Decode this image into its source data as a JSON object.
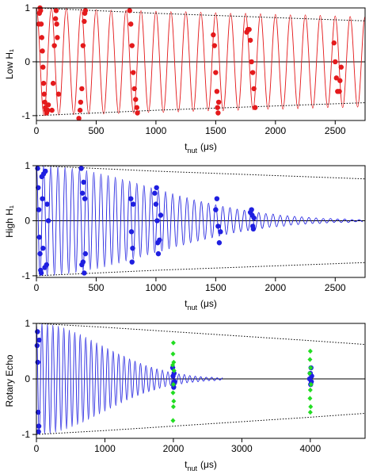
{
  "chart_data": [
    {
      "type": "line",
      "ylabel": "Low H₁",
      "xlabel": {
        "text": "t",
        "subscript": "nut",
        "unit": "(μs)"
      },
      "xlim": [
        0,
        2750
      ],
      "ylim": [
        -1.09,
        1
      ],
      "xticks": [
        0,
        500,
        1000,
        1500,
        2000,
        2500
      ],
      "yticks": [
        -1,
        0,
        1
      ],
      "zero_line": true,
      "series": [
        {
          "color": "#e41a1c",
          "line_style": "smooth",
          "x": [
            0,
            62.5,
            125,
            187.5,
            250,
            312.5,
            375,
            437.5,
            500,
            562.5,
            625,
            687.5,
            750,
            812.5,
            875,
            937.5,
            1000,
            1062.5,
            1125,
            1187.5,
            1250,
            1312.5,
            1375,
            1437.5,
            1500,
            1562.5,
            1625,
            1687.5,
            1750,
            1812.5,
            1875,
            1937.5,
            2000,
            2062.5,
            2125,
            2187.5,
            2250,
            2312.5,
            2375,
            2437.5,
            2500,
            2562.5,
            2625,
            2687.5,
            2750
          ],
          "values": [
            1,
            -1,
            0.99,
            -0.99,
            0.99,
            -0.98,
            0.98,
            -0.97,
            0.97,
            -0.97,
            0.96,
            -0.96,
            0.96,
            -0.95,
            0.95,
            -0.94,
            0.94,
            -0.94,
            0.93,
            -0.93,
            0.93,
            -0.92,
            0.92,
            -0.91,
            0.91,
            -0.91,
            0.9,
            -0.9,
            0.9,
            -0.89,
            0.89,
            -0.88,
            0.88,
            -0.88,
            0.87,
            -0.87,
            0.87,
            -0.86,
            0.86,
            -0.85,
            0.85,
            -0.85,
            0.84,
            -0.84,
            0.84
          ]
        },
        {
          "color": "#000000",
          "line_style": "dotted",
          "x": [
            0,
            500,
            1000,
            1500,
            2000,
            2500,
            2750
          ],
          "values": [
            1,
            0.95,
            0.9,
            0.86,
            0.82,
            0.78,
            0.76
          ]
        },
        {
          "color": "#000000",
          "line_style": "dotted",
          "x": [
            0,
            500,
            1000,
            1500,
            2000,
            2500,
            2750
          ],
          "values": [
            -1,
            -0.95,
            -0.9,
            -0.86,
            -0.82,
            -0.78,
            -0.76
          ]
        }
      ],
      "points": [
        {
          "color": "#e41a1c",
          "marker": "circle",
          "x": [
            20,
            25,
            30,
            35,
            40,
            45,
            50,
            55,
            60,
            65,
            70,
            75,
            80,
            85,
            95,
            100,
            130,
            140,
            150,
            160,
            165,
            170,
            175,
            185,
            355,
            365,
            370,
            380,
            390,
            400,
            405,
            410,
            780,
            790,
            800,
            810,
            820,
            830,
            840,
            845,
            1480,
            1490,
            1500,
            1510,
            1515,
            1520,
            1525,
            1760,
            1770,
            1780,
            1790,
            1800,
            1810,
            1820,
            1830,
            2490,
            2500,
            2510,
            2520,
            2535,
            2540,
            2550
          ],
          "values": [
            0.7,
            0.9,
            1.0,
            0.95,
            0.7,
            0.45,
            0.2,
            -0.1,
            -0.4,
            -0.6,
            -0.75,
            -0.85,
            -0.9,
            -0.95,
            -0.9,
            -0.8,
            -0.9,
            -0.4,
            0.3,
            0.8,
            0.95,
            0.7,
            0.45,
            -0.6,
            -1.05,
            -0.9,
            -0.75,
            -0.5,
            0.3,
            0.75,
            0.9,
            0.95,
            0.95,
            0.7,
            0.3,
            -0.2,
            -0.5,
            -0.7,
            -0.85,
            -0.95,
            0.5,
            0.3,
            -0.2,
            -0.55,
            -0.85,
            -0.95,
            -0.75,
            0.55,
            0.6,
            0.6,
            0.4,
            0.0,
            -0.2,
            -0.5,
            -0.85,
            0.35,
            0.0,
            -0.3,
            -0.55,
            -0.55,
            -0.35,
            -0.1
          ]
        }
      ]
    },
    {
      "type": "line",
      "ylabel": "High H₁",
      "xlabel": {
        "text": "t",
        "subscript": "nut",
        "unit": "(μs)"
      },
      "xlim": [
        0,
        2750
      ],
      "ylim": [
        -1.03,
        1
      ],
      "xticks": [
        0,
        500,
        1000,
        1500,
        2000,
        2500
      ],
      "yticks": [
        -1,
        0,
        1
      ],
      "zero_line": true,
      "series": [
        {
          "color": "#1f1fe0",
          "line_style": "smooth",
          "x": [
            0,
            30,
            60,
            90,
            120,
            150,
            180,
            210,
            240,
            270,
            300,
            330,
            360,
            390,
            420,
            450,
            480,
            510,
            540,
            570,
            600,
            630,
            660,
            690,
            720,
            750,
            780,
            810,
            840,
            870,
            900,
            930,
            960,
            990,
            1020,
            1050,
            1080,
            1110,
            1140,
            1170,
            1200,
            1230,
            1260,
            1290,
            1320,
            1350,
            1380,
            1410,
            1440,
            1470,
            1500,
            1530,
            1560,
            1590,
            1620,
            1650,
            1680,
            1710,
            1740,
            1770,
            1800,
            1830,
            1860,
            1890,
            1920,
            1950,
            1980,
            2010,
            2040,
            2070,
            2100,
            2130,
            2160,
            2190,
            2220,
            2250,
            2280,
            2310,
            2340,
            2370,
            2400,
            2430,
            2460,
            2490,
            2520,
            2550,
            2580,
            2610,
            2640,
            2670,
            2700,
            2730
          ],
          "values": [
            1,
            -1,
            1,
            -1,
            0.99,
            -0.99,
            0.98,
            -0.98,
            0.97,
            -0.96,
            0.95,
            -0.94,
            0.93,
            -0.92,
            0.91,
            -0.89,
            0.88,
            -0.87,
            0.85,
            -0.84,
            0.82,
            -0.8,
            0.79,
            -0.77,
            0.75,
            -0.73,
            0.72,
            -0.7,
            0.68,
            -0.66,
            0.64,
            -0.62,
            0.6,
            -0.58,
            0.56,
            -0.55,
            0.53,
            -0.51,
            0.49,
            -0.47,
            0.45,
            -0.44,
            0.42,
            -0.4,
            0.38,
            -0.37,
            0.35,
            -0.34,
            0.32,
            -0.31,
            0.29,
            -0.28,
            0.26,
            -0.25,
            0.24,
            -0.22,
            0.21,
            -0.2,
            0.19,
            -0.18,
            0.17,
            -0.16,
            0.15,
            -0.14,
            0.13,
            -0.12,
            0.12,
            -0.11,
            0.1,
            -0.1,
            0.09,
            -0.08,
            0.08,
            -0.07,
            0.07,
            -0.06,
            0.06,
            -0.05,
            0.05,
            -0.05,
            0.04,
            -0.04,
            0.04,
            -0.03,
            0.03,
            -0.03,
            0.03,
            -0.03,
            0.02,
            -0.02,
            0.02,
            -0.02
          ]
        },
        {
          "color": "#000000",
          "line_style": "dotted",
          "x": [
            0,
            500,
            1000,
            1500,
            2000,
            2500,
            2750
          ],
          "values": [
            1,
            0.95,
            0.9,
            0.86,
            0.82,
            0.78,
            0.76
          ]
        },
        {
          "color": "#000000",
          "line_style": "dotted",
          "x": [
            0,
            500,
            1000,
            1500,
            2000,
            2500,
            2750
          ],
          "values": [
            -1,
            -0.95,
            -0.9,
            -0.86,
            -0.82,
            -0.78,
            -0.76
          ]
        }
      ],
      "points": [
        {
          "color": "#1f1fe0",
          "marker": "circle",
          "x": [
            10,
            15,
            20,
            25,
            30,
            35,
            40,
            45,
            50,
            55,
            60,
            70,
            75,
            85,
            90,
            100,
            375,
            380,
            385,
            390,
            395,
            400,
            405,
            410,
            790,
            795,
            800,
            805,
            810,
            990,
            1000,
            1005,
            1010,
            1015,
            1020,
            1030,
            1040,
            1500,
            1510,
            1520,
            1530,
            1540,
            1790,
            1800,
            1805,
            1810,
            1815,
            1820
          ],
          "values": [
            0.95,
            0.6,
            0.2,
            -0.3,
            -0.6,
            -0.9,
            -0.95,
            0.8,
            0.4,
            -0.5,
            0.85,
            -0.85,
            0.9,
            -0.8,
            0.3,
            0.0,
            0.95,
            -0.8,
            0.5,
            -0.75,
            0.7,
            -0.95,
            0.4,
            -0.6,
            0.4,
            -0.2,
            -0.75,
            -0.5,
            0.3,
            0.5,
            0.3,
            0.6,
            0.0,
            -0.4,
            -0.6,
            -0.35,
            0.1,
            0.2,
            0.4,
            -0.1,
            -0.4,
            -0.2,
            0.15,
            0.2,
            0.1,
            -0.1,
            -0.15,
            0.05
          ]
        }
      ]
    },
    {
      "type": "line",
      "ylabel": "Rotary Echo",
      "xlabel": {
        "text": "t",
        "subscript": "nut",
        "unit": "(μs)"
      },
      "xlim": [
        0,
        4800
      ],
      "ylim": [
        -1.07,
        1
      ],
      "xticks": [
        0,
        1000,
        2000,
        3000,
        4000
      ],
      "yticks": [
        -1,
        0,
        1
      ],
      "zero_line": true,
      "series": [
        {
          "color": "#1f1fe0",
          "line_style": "smooth",
          "x": [
            0,
            40,
            80,
            120,
            160,
            200,
            240,
            280,
            320,
            360,
            400,
            440,
            480,
            520,
            560,
            600,
            640,
            680,
            720,
            760,
            800,
            840,
            880,
            920,
            960,
            1000,
            1040,
            1080,
            1120,
            1160,
            1200,
            1240,
            1280,
            1320,
            1360,
            1400,
            1440,
            1480,
            1520,
            1560,
            1600,
            1640,
            1680,
            1720,
            1760,
            1800,
            1840,
            1880,
            1920,
            1960,
            2000,
            2040,
            2080,
            2120,
            2160,
            2200,
            2240,
            2280,
            2320,
            2360,
            2400,
            2440,
            2480,
            2520,
            2560,
            2600,
            2640,
            2680,
            2720
          ],
          "values": [
            1,
            -1,
            1,
            -0.99,
            0.99,
            -0.98,
            0.97,
            -0.96,
            0.95,
            -0.93,
            0.92,
            -0.9,
            0.88,
            -0.86,
            0.84,
            -0.82,
            0.8,
            -0.78,
            0.75,
            -0.73,
            0.7,
            -0.68,
            0.65,
            -0.63,
            0.6,
            -0.58,
            0.55,
            -0.53,
            0.5,
            -0.48,
            0.45,
            -0.43,
            0.41,
            -0.38,
            0.36,
            -0.34,
            0.32,
            -0.3,
            0.28,
            -0.26,
            0.24,
            -0.23,
            0.21,
            -0.2,
            0.18,
            -0.17,
            0.16,
            -0.14,
            0.13,
            -0.12,
            0.11,
            -0.1,
            0.09,
            -0.09,
            0.08,
            -0.07,
            0.06,
            -0.06,
            0.05,
            -0.05,
            0.04,
            -0.04,
            0.03,
            -0.03,
            0.03,
            -0.03,
            0.02,
            -0.02,
            0.02
          ]
        },
        {
          "color": "#000000",
          "line_style": "dotted",
          "x": [
            0,
            1000,
            2000,
            3000,
            4000,
            4800
          ],
          "values": [
            1,
            0.93,
            0.85,
            0.77,
            0.69,
            0.62
          ]
        },
        {
          "color": "#000000",
          "line_style": "dotted",
          "x": [
            0,
            1000,
            2000,
            3000,
            4000,
            4800
          ],
          "values": [
            -1,
            -0.93,
            -0.85,
            -0.77,
            -0.69,
            -0.62
          ]
        }
      ],
      "points": [
        {
          "color": "#1f1fe0",
          "marker": "circle",
          "x": [
            10,
            15,
            20,
            25,
            30,
            35,
            40,
            1990,
            1995,
            2000,
            2005,
            2010,
            2015,
            3990,
            4000,
            4005,
            4010,
            4015,
            4020
          ],
          "values": [
            0.6,
            0.85,
            0.3,
            -0.6,
            -0.95,
            -0.85,
            0.7,
            0.2,
            0.05,
            -0.1,
            -0.15,
            0.1,
            -0.05,
            0.0,
            0.1,
            -0.1,
            0.2,
            -0.05,
            0.05
          ]
        },
        {
          "color": "#22dd22",
          "marker": "diamond",
          "x": [
            2000,
            1995,
            2005,
            1990,
            2010,
            2000,
            1995,
            2005,
            2000,
            1995,
            4000,
            3995,
            4005,
            3990,
            4010,
            4000,
            3995,
            4005,
            4000
          ],
          "values": [
            0.65,
            0.45,
            0.3,
            0.25,
            0.15,
            -0.1,
            -0.25,
            -0.4,
            -0.5,
            -0.75,
            0.5,
            0.35,
            0.2,
            0.1,
            -0.1,
            -0.2,
            -0.35,
            -0.5,
            -0.6
          ]
        }
      ]
    }
  ]
}
